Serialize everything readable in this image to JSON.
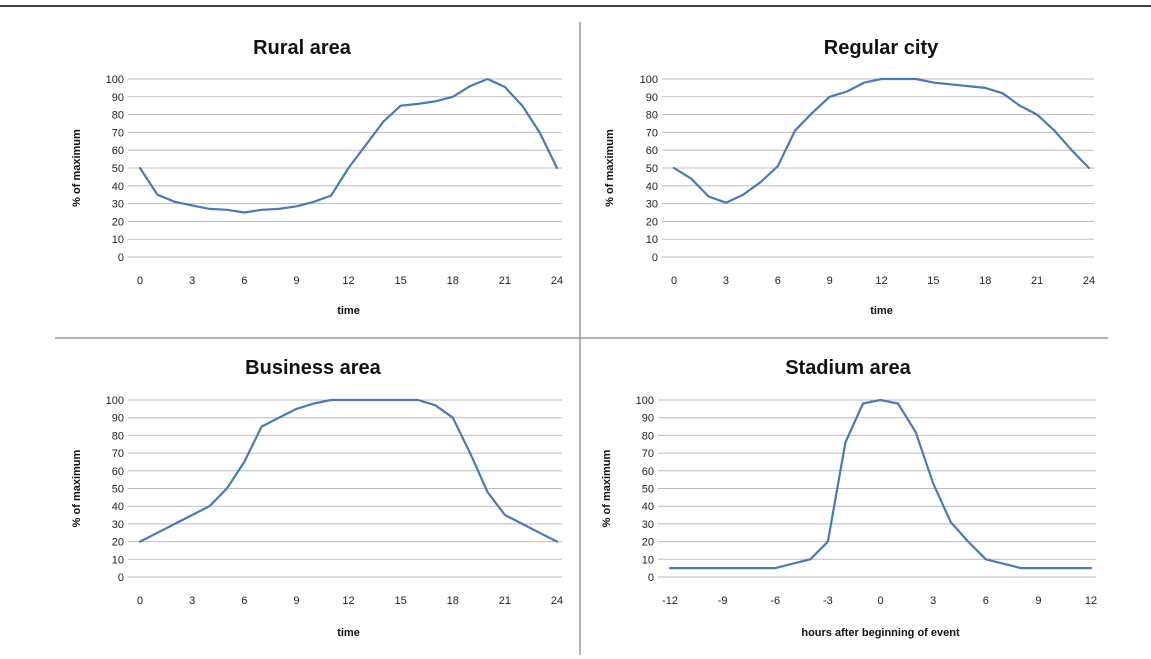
{
  "chart_data": [
    {
      "type": "line",
      "title": "Rural area",
      "xlabel": "time",
      "ylabel": "% of maximum",
      "ylim": [
        0,
        100
      ],
      "yticks": [
        "0",
        "10",
        "20",
        "30",
        "40",
        "50",
        "60",
        "70",
        "80",
        "90",
        "100"
      ],
      "xlim": [
        0,
        24
      ],
      "xticks": [
        "0",
        "3",
        "6",
        "9",
        "12",
        "15",
        "18",
        "21",
        "24"
      ],
      "grid": true,
      "x": [
        0,
        1,
        2,
        3,
        4,
        5,
        6,
        7,
        8,
        9,
        10,
        11,
        12,
        13,
        14,
        15,
        16,
        17,
        18,
        19,
        20,
        21,
        22,
        23,
        24
      ],
      "values": [
        50,
        35,
        31,
        29,
        27,
        26.5,
        25,
        26.5,
        27,
        28.5,
        31,
        34.5,
        50,
        63,
        76,
        85,
        86,
        87.5,
        90,
        96,
        100,
        95.5,
        85,
        70,
        50
      ]
    },
    {
      "type": "line",
      "title": "Regular city",
      "xlabel": "time",
      "ylabel": "% of maximum",
      "ylim": [
        0,
        100
      ],
      "yticks": [
        "0",
        "10",
        "20",
        "30",
        "40",
        "50",
        "60",
        "70",
        "80",
        "90",
        "100"
      ],
      "xlim": [
        0,
        24
      ],
      "xticks": [
        "0",
        "3",
        "6",
        "9",
        "12",
        "15",
        "18",
        "21",
        "24"
      ],
      "grid": true,
      "x": [
        0,
        1,
        2,
        3,
        4,
        5,
        6,
        7,
        8,
        9,
        10,
        11,
        12,
        13,
        14,
        15,
        16,
        17,
        18,
        19,
        20,
        21,
        22,
        23,
        24
      ],
      "values": [
        50,
        44,
        34,
        30.5,
        35,
        42,
        51,
        71,
        81,
        90,
        93,
        98,
        100,
        100,
        100,
        98,
        97,
        96,
        95,
        92,
        85,
        80,
        71,
        60,
        50
      ]
    },
    {
      "type": "line",
      "title": "Business area",
      "xlabel": "time",
      "ylabel": "% of maximum",
      "ylim": [
        0,
        100
      ],
      "yticks": [
        "0",
        "10",
        "20",
        "30",
        "40",
        "50",
        "60",
        "70",
        "80",
        "90",
        "100"
      ],
      "xlim": [
        0,
        24
      ],
      "xticks": [
        "0",
        "3",
        "6",
        "9",
        "12",
        "15",
        "18",
        "21",
        "24"
      ],
      "grid": true,
      "x": [
        0,
        1,
        2,
        3,
        4,
        5,
        6,
        7,
        8,
        9,
        10,
        11,
        12,
        13,
        14,
        15,
        16,
        17,
        18,
        19,
        20,
        21,
        22,
        23,
        24
      ],
      "values": [
        20,
        25,
        30,
        35,
        40,
        50,
        65,
        85,
        90,
        95,
        98,
        100,
        100,
        100,
        100,
        100,
        100,
        97,
        90,
        70,
        48,
        35,
        30,
        25,
        20
      ]
    },
    {
      "type": "line",
      "title": "Stadium area",
      "xlabel": "hours after beginning of event",
      "ylabel": "% of maximum",
      "ylim": [
        0,
        100
      ],
      "yticks": [
        "0",
        "10",
        "20",
        "30",
        "40",
        "50",
        "60",
        "70",
        "80",
        "90",
        "100"
      ],
      "xlim": [
        -12,
        12
      ],
      "xticks": [
        "-12",
        "-9",
        "-6",
        "-3",
        "0",
        "3",
        "6",
        "9",
        "12"
      ],
      "grid": true,
      "x": [
        -12,
        -11,
        -10,
        -9,
        -8,
        -7,
        -6,
        -5,
        -4,
        -3,
        -2,
        -1,
        0,
        1,
        2,
        3,
        4,
        5,
        6,
        7,
        8,
        9,
        10,
        11,
        12
      ],
      "values": [
        5,
        5,
        5,
        5,
        5,
        5,
        5,
        7.5,
        10,
        20,
        76,
        98,
        100,
        98,
        82,
        53,
        31,
        20,
        10,
        7.5,
        5,
        5,
        5,
        5,
        5
      ]
    }
  ]
}
